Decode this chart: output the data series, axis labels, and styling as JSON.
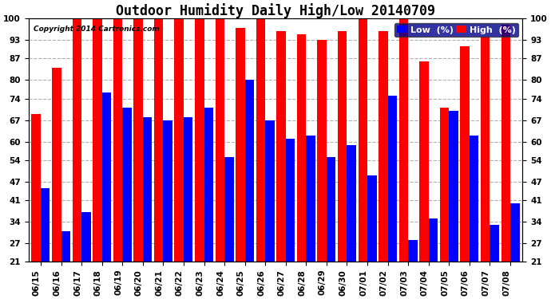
{
  "title": "Outdoor Humidity Daily High/Low 20140709",
  "copyright": "Copyright 2014 Cartronics.com",
  "legend_low": "Low  (%)",
  "legend_high": "High  (%)",
  "dates": [
    "06/15",
    "06/16",
    "06/17",
    "06/18",
    "06/19",
    "06/20",
    "06/21",
    "06/22",
    "06/23",
    "06/24",
    "06/25",
    "06/26",
    "06/27",
    "06/28",
    "06/29",
    "06/30",
    "07/01",
    "07/02",
    "07/03",
    "07/04",
    "07/05",
    "07/06",
    "07/07",
    "07/08"
  ],
  "high": [
    69,
    84,
    100,
    100,
    100,
    100,
    100,
    100,
    100,
    100,
    97,
    100,
    96,
    95,
    93,
    96,
    100,
    96,
    100,
    86,
    71,
    91,
    94,
    98
  ],
  "low": [
    45,
    31,
    37,
    76,
    71,
    68,
    67,
    68,
    71,
    55,
    80,
    67,
    61,
    62,
    55,
    59,
    49,
    75,
    28,
    35,
    70,
    62,
    33,
    40
  ],
  "ylim_min": 21,
  "ylim_max": 100,
  "yticks": [
    21,
    27,
    34,
    41,
    47,
    54,
    60,
    67,
    74,
    80,
    87,
    93,
    100
  ],
  "high_color": "#ff0000",
  "low_color": "#0000ff",
  "bg_color": "#ffffff",
  "grid_color": "#b0b0b0",
  "title_fontsize": 12,
  "tick_fontsize": 7.5,
  "legend_fontsize": 8
}
